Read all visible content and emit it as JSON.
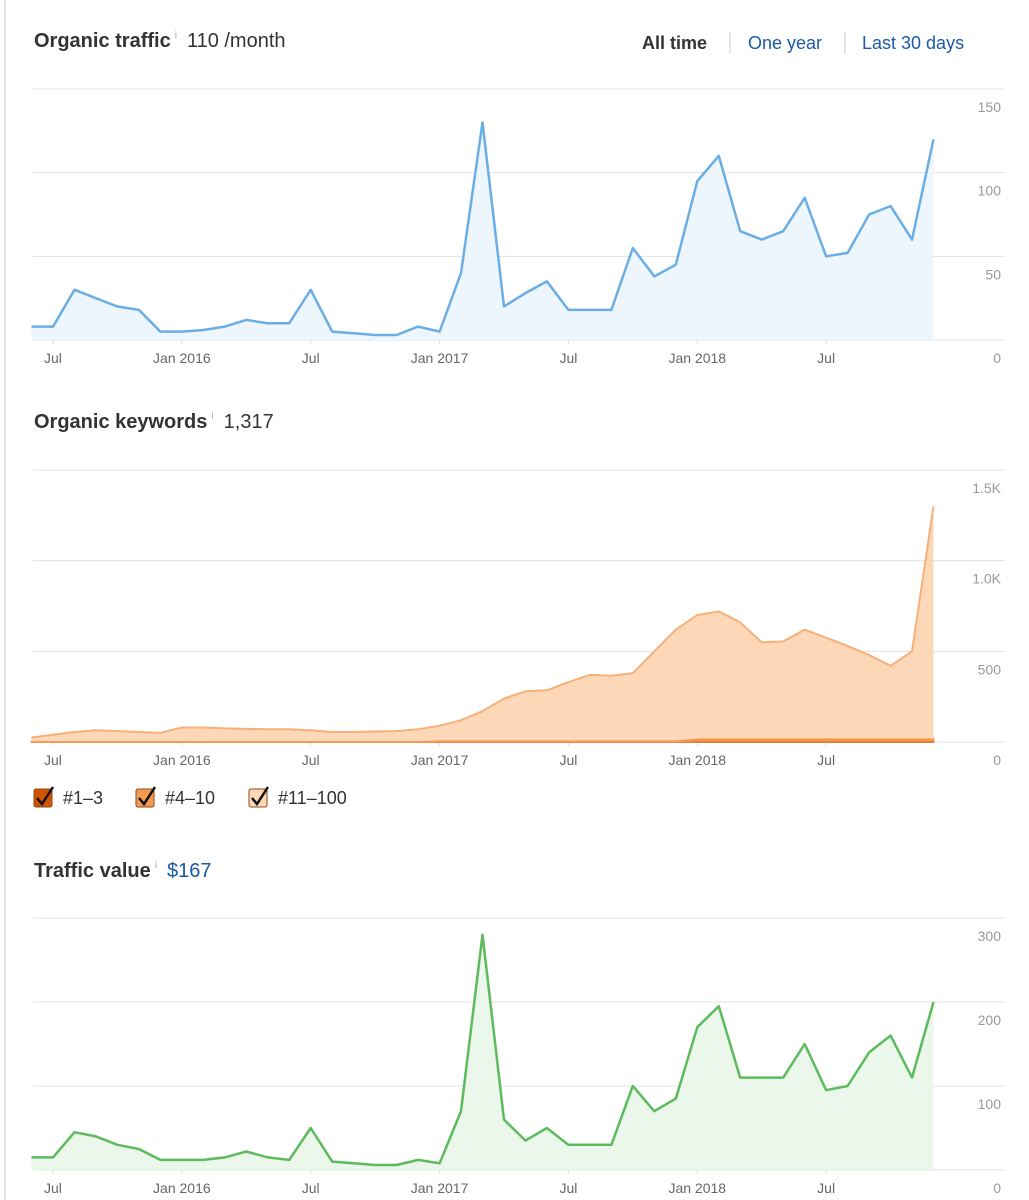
{
  "time_range_tabs": [
    "All time",
    "One year",
    "Last 30 days"
  ],
  "selected_tab": 0,
  "chart_data": [
    {
      "type": "area",
      "title": "Organic traffic",
      "title_info": "i",
      "summary": "110 /month",
      "summary_color": "#333333",
      "color": "#6aaee3",
      "fill": "#eef6fd",
      "x": [
        "2015-06",
        "2015-07",
        "2015-08",
        "2015-09",
        "2015-10",
        "2015-11",
        "2015-12",
        "2016-01",
        "2016-02",
        "2016-03",
        "2016-04",
        "2016-05",
        "2016-06",
        "2016-07",
        "2016-08",
        "2016-09",
        "2016-10",
        "2016-11",
        "2016-12",
        "2017-01",
        "2017-02",
        "2017-03",
        "2017-04",
        "2017-05",
        "2017-06",
        "2017-07",
        "2017-08",
        "2017-09",
        "2017-10",
        "2017-11",
        "2017-12",
        "2018-01",
        "2018-02",
        "2018-03",
        "2018-04",
        "2018-05",
        "2018-06",
        "2018-07",
        "2018-08",
        "2018-09",
        "2018-10",
        "2018-11",
        "2018-12"
      ],
      "values": [
        8,
        8,
        30,
        25,
        20,
        18,
        5,
        5,
        6,
        8,
        12,
        10,
        10,
        30,
        5,
        4,
        3,
        3,
        8,
        5,
        40,
        130,
        20,
        28,
        35,
        18,
        18,
        18,
        55,
        38,
        45,
        95,
        110,
        65,
        60,
        65,
        85,
        50,
        52,
        75,
        80,
        60,
        120
      ],
      "xlim": [
        "2015-06",
        "2019-01"
      ],
      "xticks": [
        {
          "value": "2015-07",
          "label": "Jul"
        },
        {
          "value": "2016-01",
          "label": "Jan 2016"
        },
        {
          "value": "2016-07",
          "label": "Jul"
        },
        {
          "value": "2017-01",
          "label": "Jan 2017"
        },
        {
          "value": "2017-07",
          "label": "Jul"
        },
        {
          "value": "2018-01",
          "label": "Jan 2018"
        },
        {
          "value": "2018-07",
          "label": "Jul"
        }
      ],
      "ylim": [
        0,
        150
      ],
      "yticks": [
        0,
        50,
        100,
        150
      ],
      "grid": true
    },
    {
      "type": "stacked_area",
      "title": "Organic keywords",
      "title_info": "i",
      "summary": "1,317",
      "summary_color": "#333333",
      "x": [
        "2015-06",
        "2015-07",
        "2015-08",
        "2015-09",
        "2015-10",
        "2015-11",
        "2015-12",
        "2016-01",
        "2016-02",
        "2016-03",
        "2016-04",
        "2016-05",
        "2016-06",
        "2016-07",
        "2016-08",
        "2016-09",
        "2016-10",
        "2016-11",
        "2016-12",
        "2017-01",
        "2017-02",
        "2017-03",
        "2017-04",
        "2017-05",
        "2017-06",
        "2017-07",
        "2017-08",
        "2017-09",
        "2017-10",
        "2017-11",
        "2017-12",
        "2018-01",
        "2018-02",
        "2018-03",
        "2018-04",
        "2018-05",
        "2018-06",
        "2018-07",
        "2018-08",
        "2018-09",
        "2018-10",
        "2018-11",
        "2018-12"
      ],
      "series": [
        {
          "name": "#1–3",
          "color": "#d35400",
          "values": [
            2,
            2,
            2,
            2,
            2,
            2,
            2,
            2,
            2,
            2,
            2,
            2,
            2,
            2,
            2,
            2,
            2,
            2,
            2,
            3,
            3,
            3,
            3,
            3,
            3,
            3,
            3,
            3,
            3,
            3,
            3,
            6,
            6,
            6,
            6,
            6,
            6,
            6,
            6,
            6,
            6,
            6,
            6
          ]
        },
        {
          "name": "#4–10",
          "color": "#f29a52",
          "values": [
            3,
            3,
            3,
            3,
            3,
            3,
            3,
            3,
            3,
            3,
            3,
            3,
            3,
            3,
            3,
            3,
            3,
            3,
            3,
            6,
            6,
            6,
            6,
            6,
            6,
            6,
            6,
            6,
            6,
            6,
            6,
            14,
            14,
            14,
            14,
            14,
            14,
            14,
            14,
            14,
            14,
            14,
            14
          ]
        },
        {
          "name": "#11–100",
          "color": "#fdd8b8",
          "values": [
            20,
            35,
            50,
            60,
            55,
            50,
            45,
            75,
            75,
            70,
            67,
            65,
            65,
            60,
            50,
            50,
            53,
            55,
            65,
            81,
            111,
            161,
            231,
            271,
            276,
            321,
            361,
            356,
            371,
            491,
            611,
            680,
            700,
            640,
            530,
            535,
            600,
            555,
            510,
            460,
            400,
            480,
            1280
          ]
        }
      ],
      "line_color": "#f7b07a",
      "xlim": [
        "2015-06",
        "2019-01"
      ],
      "xticks": [
        {
          "value": "2015-07",
          "label": "Jul"
        },
        {
          "value": "2016-01",
          "label": "Jan 2016"
        },
        {
          "value": "2016-07",
          "label": "Jul"
        },
        {
          "value": "2017-01",
          "label": "Jan 2017"
        },
        {
          "value": "2017-07",
          "label": "Jul"
        },
        {
          "value": "2018-01",
          "label": "Jan 2018"
        },
        {
          "value": "2018-07",
          "label": "Jul"
        }
      ],
      "ylim": [
        0,
        1500
      ],
      "yticks": [
        0,
        500,
        {
          "value": 1000,
          "label": "1.0K"
        },
        {
          "value": 1500,
          "label": "1.5K"
        }
      ],
      "grid": true
    },
    {
      "type": "area",
      "title": "Traffic value",
      "title_info": "i",
      "summary": "$167",
      "summary_color": "#1a5aa6",
      "color": "#5dbb5d",
      "fill": "#eaf7ea",
      "x": [
        "2015-06",
        "2015-07",
        "2015-08",
        "2015-09",
        "2015-10",
        "2015-11",
        "2015-12",
        "2016-01",
        "2016-02",
        "2016-03",
        "2016-04",
        "2016-05",
        "2016-06",
        "2016-07",
        "2016-08",
        "2016-09",
        "2016-10",
        "2016-11",
        "2016-12",
        "2017-01",
        "2017-02",
        "2017-03",
        "2017-04",
        "2017-05",
        "2017-06",
        "2017-07",
        "2017-08",
        "2017-09",
        "2017-10",
        "2017-11",
        "2017-12",
        "2018-01",
        "2018-02",
        "2018-03",
        "2018-04",
        "2018-05",
        "2018-06",
        "2018-07",
        "2018-08",
        "2018-09",
        "2018-10",
        "2018-11",
        "2018-12"
      ],
      "values": [
        15,
        15,
        45,
        40,
        30,
        25,
        12,
        12,
        12,
        15,
        22,
        15,
        12,
        50,
        10,
        8,
        6,
        6,
        12,
        8,
        70,
        280,
        60,
        35,
        50,
        30,
        30,
        30,
        100,
        70,
        85,
        170,
        195,
        110,
        110,
        110,
        150,
        95,
        100,
        140,
        160,
        110,
        200
      ],
      "xlim": [
        "2015-06",
        "2019-01"
      ],
      "xticks": [
        {
          "value": "2015-07",
          "label": "Jul"
        },
        {
          "value": "2016-01",
          "label": "Jan 2016"
        },
        {
          "value": "2016-07",
          "label": "Jul"
        },
        {
          "value": "2017-01",
          "label": "Jan 2017"
        },
        {
          "value": "2017-07",
          "label": "Jul"
        },
        {
          "value": "2018-01",
          "label": "Jan 2018"
        },
        {
          "value": "2018-07",
          "label": "Jul"
        }
      ],
      "ylim": [
        0,
        300
      ],
      "yticks": [
        0,
        100,
        200,
        300
      ],
      "grid": true
    }
  ]
}
